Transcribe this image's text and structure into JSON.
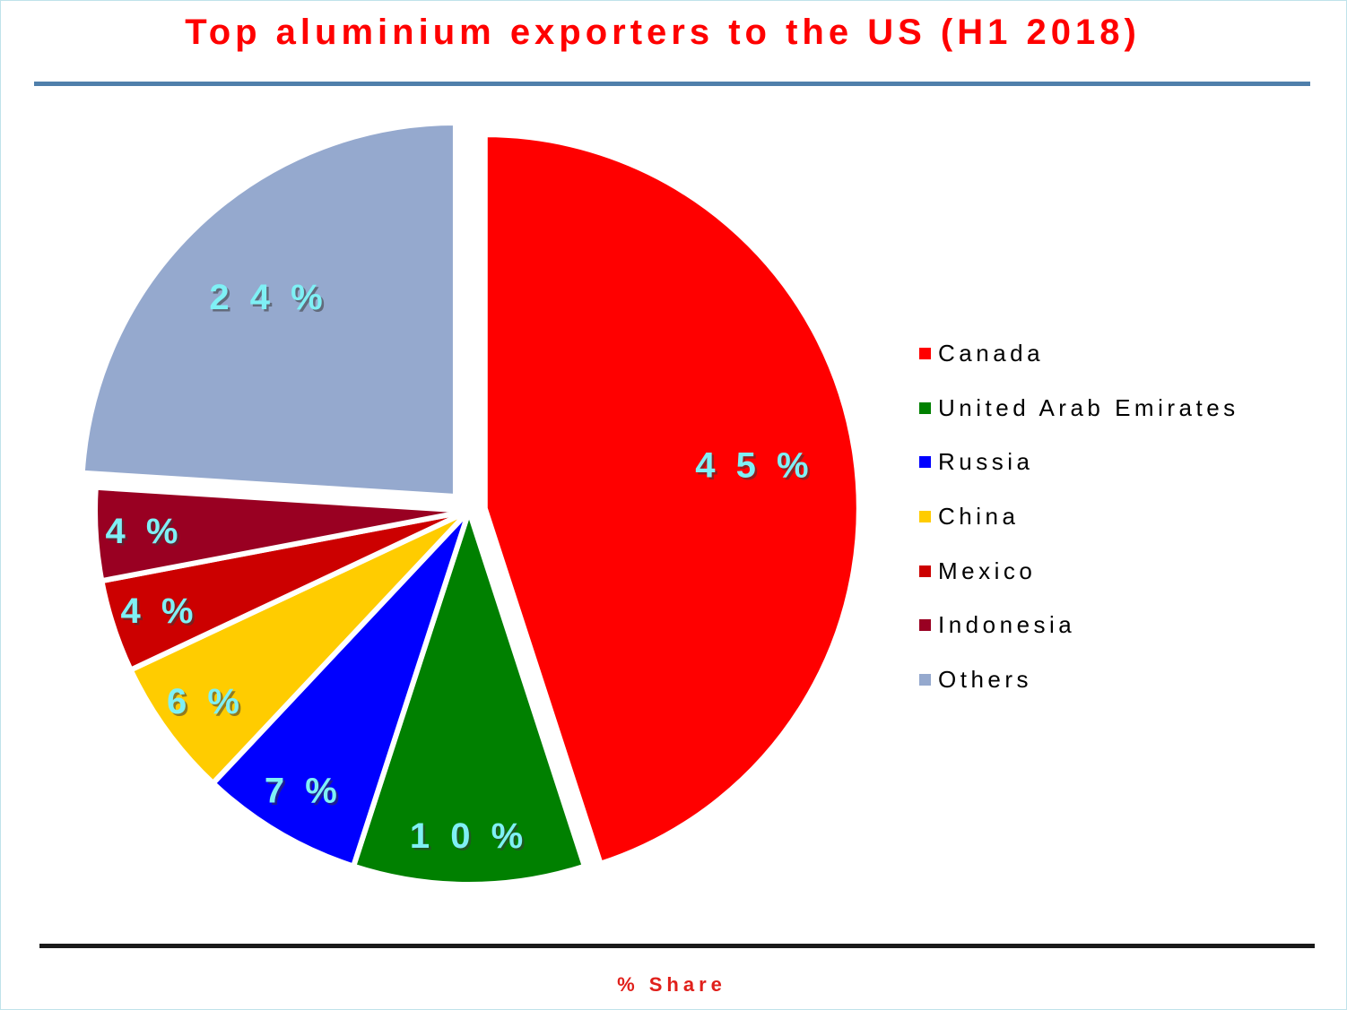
{
  "title": "Top aluminium exporters to the US (H1 2018)",
  "footer_label": "% Share",
  "chart_data": {
    "type": "pie",
    "title": "Top aluminium exporters to the US (H1 2018)",
    "unit": "%",
    "legend_position": "right",
    "slices": [
      {
        "label": "Canada",
        "value": 45,
        "display": "4 5 %",
        "color": "#ff0000"
      },
      {
        "label": "United Arab Emirates",
        "value": 10,
        "display": "1 0 %",
        "color": "#008000"
      },
      {
        "label": "Russia",
        "value": 7,
        "display": "7 %",
        "color": "#0000ff"
      },
      {
        "label": "China",
        "value": 6,
        "display": "6 %",
        "color": "#ffcc00"
      },
      {
        "label": "Mexico",
        "value": 4,
        "display": "4 %",
        "color": "#cc0000"
      },
      {
        "label": "Indonesia",
        "value": 4,
        "display": "4 %",
        "color": "#990022"
      },
      {
        "label": "Others",
        "value": 24,
        "display": "2 4 %",
        "color": "#95a9ce"
      }
    ]
  },
  "legend": {
    "items": [
      {
        "label": "Canada",
        "color": "#ff0000"
      },
      {
        "label": "United Arab Emirates",
        "color": "#008000"
      },
      {
        "label": "Russia",
        "color": "#0000ff"
      },
      {
        "label": "China",
        "color": "#ffcc00"
      },
      {
        "label": "Mexico",
        "color": "#cc0000"
      },
      {
        "label": "Indonesia",
        "color": "#990022"
      },
      {
        "label": "Others",
        "color": "#95a9ce"
      }
    ]
  }
}
